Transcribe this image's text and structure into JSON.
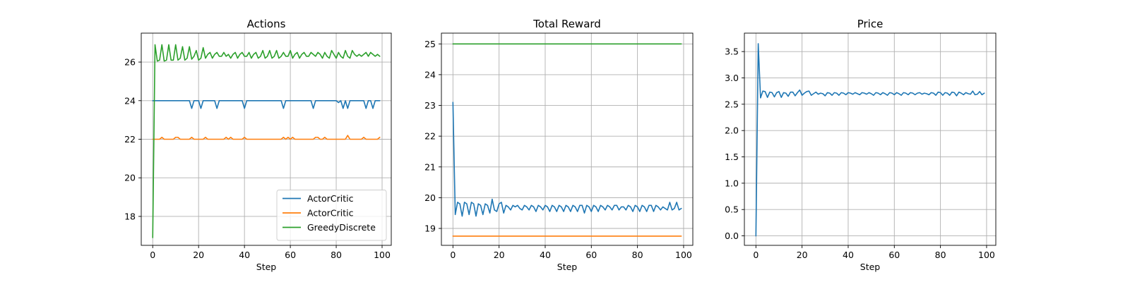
{
  "colors": {
    "blue": "#1f77b4",
    "orange": "#ff7f0e",
    "green": "#2ca02c",
    "grid": "#b0b0b0"
  },
  "chart_data": [
    {
      "type": "line",
      "title": "Actions",
      "xlabel": "Step",
      "ylabel": "",
      "xlim": [
        -5,
        104
      ],
      "ylim": [
        16.5,
        27.5
      ],
      "xticks": [
        0,
        20,
        40,
        60,
        80,
        100
      ],
      "yticks": [
        18,
        20,
        22,
        24,
        26
      ],
      "ytick_format": 0,
      "grid": true,
      "legend": "lower-right",
      "series": [
        {
          "name": "ActorCritic",
          "color": "#1f77b4",
          "x": [
            0,
            1,
            2,
            3,
            4,
            5,
            6,
            7,
            8,
            9,
            10,
            11,
            12,
            13,
            14,
            15,
            16,
            17,
            18,
            19,
            20,
            21,
            22,
            23,
            24,
            25,
            26,
            27,
            28,
            29,
            30,
            31,
            32,
            33,
            34,
            35,
            36,
            37,
            38,
            39,
            40,
            41,
            42,
            43,
            44,
            45,
            46,
            47,
            48,
            49,
            50,
            51,
            52,
            53,
            54,
            55,
            56,
            57,
            58,
            59,
            60,
            61,
            62,
            63,
            64,
            65,
            66,
            67,
            68,
            69,
            70,
            71,
            72,
            73,
            74,
            75,
            76,
            77,
            78,
            79,
            80,
            81,
            82,
            83,
            84,
            85,
            86,
            87,
            88,
            89,
            90,
            91,
            92,
            93,
            94,
            95,
            96,
            97,
            98,
            99
          ],
          "y": [
            24,
            24,
            24,
            24,
            24,
            24,
            24,
            24,
            24,
            24,
            24,
            24,
            24,
            24,
            24,
            24,
            24,
            23.6,
            24,
            24,
            24,
            23.6,
            24,
            24,
            24,
            24,
            24,
            24,
            23.6,
            24,
            24,
            24,
            24,
            24,
            24,
            24,
            24,
            24,
            24,
            24,
            23.6,
            24,
            24,
            24,
            24,
            24,
            24,
            24,
            24,
            24,
            24,
            24,
            24,
            24,
            24,
            24,
            24,
            23.6,
            24,
            24,
            24,
            24,
            24,
            24,
            24,
            24,
            24,
            24,
            24,
            24,
            23.6,
            24,
            24,
            24,
            24,
            24,
            24,
            24,
            24,
            24,
            24,
            23.9,
            24,
            23.6,
            24,
            23.6,
            24,
            24,
            24,
            24,
            24,
            24,
            24,
            23.6,
            24,
            24,
            23.6,
            24,
            24,
            24
          ]
        },
        {
          "name": "ActorCritic",
          "color": "#ff7f0e",
          "x": [
            0,
            1,
            2,
            3,
            4,
            5,
            6,
            7,
            8,
            9,
            10,
            11,
            12,
            13,
            14,
            15,
            16,
            17,
            18,
            19,
            20,
            21,
            22,
            23,
            24,
            25,
            26,
            27,
            28,
            29,
            30,
            31,
            32,
            33,
            34,
            35,
            36,
            37,
            38,
            39,
            40,
            41,
            42,
            43,
            44,
            45,
            46,
            47,
            48,
            49,
            50,
            51,
            52,
            53,
            54,
            55,
            56,
            57,
            58,
            59,
            60,
            61,
            62,
            63,
            64,
            65,
            66,
            67,
            68,
            69,
            70,
            71,
            72,
            73,
            74,
            75,
            76,
            77,
            78,
            79,
            80,
            81,
            82,
            83,
            84,
            85,
            86,
            87,
            88,
            89,
            90,
            91,
            92,
            93,
            94,
            95,
            96,
            97,
            98,
            99
          ],
          "y": [
            22,
            22,
            22,
            22,
            22.1,
            22,
            22,
            22,
            22,
            22,
            22.1,
            22.1,
            22,
            22,
            22,
            22,
            22,
            22.1,
            22,
            22,
            22,
            22,
            22,
            22.1,
            22,
            22,
            22,
            22,
            22,
            22,
            22,
            22,
            22.1,
            22,
            22.1,
            22,
            22,
            22,
            22,
            22,
            22.1,
            22,
            22,
            22,
            22,
            22,
            22,
            22,
            22,
            22,
            22,
            22,
            22,
            22,
            22,
            22,
            22,
            22.1,
            22,
            22.1,
            22,
            22.1,
            22,
            22,
            22,
            22,
            22,
            22,
            22,
            22,
            22,
            22.1,
            22.1,
            22,
            22,
            22.1,
            22,
            22,
            22,
            22,
            22,
            22,
            22,
            22,
            22,
            22.2,
            22,
            22,
            22,
            22,
            22,
            22,
            22.1,
            22,
            22,
            22,
            22,
            22,
            22,
            22.1
          ]
        },
        {
          "name": "GreedyDiscrete",
          "color": "#2ca02c",
          "x": [
            0,
            1,
            2,
            3,
            4,
            5,
            6,
            7,
            8,
            9,
            10,
            11,
            12,
            13,
            14,
            15,
            16,
            17,
            18,
            19,
            20,
            21,
            22,
            23,
            24,
            25,
            26,
            27,
            28,
            29,
            30,
            31,
            32,
            33,
            34,
            35,
            36,
            37,
            38,
            39,
            40,
            41,
            42,
            43,
            44,
            45,
            46,
            47,
            48,
            49,
            50,
            51,
            52,
            53,
            54,
            55,
            56,
            57,
            58,
            59,
            60,
            61,
            62,
            63,
            64,
            65,
            66,
            67,
            68,
            69,
            70,
            71,
            72,
            73,
            74,
            75,
            76,
            77,
            78,
            79,
            80,
            81,
            82,
            83,
            84,
            85,
            86,
            87,
            88,
            89,
            90,
            91,
            92,
            93,
            94,
            95,
            96,
            97,
            98,
            99
          ],
          "y": [
            16.9,
            26.9,
            26.05,
            26.1,
            26.9,
            26.05,
            26.1,
            26.9,
            26.1,
            26.1,
            26.9,
            26.1,
            26.2,
            26.8,
            26.1,
            26.2,
            26.8,
            26.15,
            26.3,
            26.6,
            26.1,
            26.2,
            26.75,
            26.2,
            26.4,
            26.5,
            26.2,
            26.4,
            26.5,
            26.3,
            26.3,
            26.5,
            26.3,
            26.4,
            26.2,
            26.4,
            26.5,
            26.2,
            26.4,
            26.5,
            26.3,
            26.3,
            26.5,
            26.2,
            26.4,
            26.5,
            26.2,
            26.3,
            26.6,
            26.2,
            26.3,
            26.6,
            26.2,
            26.3,
            26.6,
            26.2,
            26.3,
            26.5,
            26.3,
            26.3,
            26.6,
            26.2,
            26.4,
            26.5,
            26.2,
            26.4,
            26.5,
            26.3,
            26.3,
            26.5,
            26.4,
            26.3,
            26.5,
            26.4,
            26.2,
            26.5,
            26.3,
            26.2,
            26.6,
            26.4,
            26.2,
            26.5,
            26.3,
            26.2,
            26.6,
            26.3,
            26.2,
            26.6,
            26.4,
            26.3,
            26.4,
            26.3,
            26.4,
            26.5,
            26.3,
            26.5,
            26.4,
            26.3,
            26.4,
            26.3
          ]
        }
      ]
    },
    {
      "type": "line",
      "title": "Total Reward",
      "xlabel": "Step",
      "ylabel": "",
      "xlim": [
        -5,
        104
      ],
      "ylim": [
        18.45,
        25.35
      ],
      "xticks": [
        0,
        20,
        40,
        60,
        80,
        100
      ],
      "yticks": [
        19,
        20,
        21,
        22,
        23,
        24,
        25
      ],
      "ytick_format": 0,
      "grid": true,
      "series": [
        {
          "color": "#1f77b4",
          "x": [
            0,
            1,
            2,
            3,
            4,
            5,
            6,
            7,
            8,
            9,
            10,
            11,
            12,
            13,
            14,
            15,
            16,
            17,
            18,
            19,
            20,
            21,
            22,
            23,
            24,
            25,
            26,
            27,
            28,
            29,
            30,
            31,
            32,
            33,
            34,
            35,
            36,
            37,
            38,
            39,
            40,
            41,
            42,
            43,
            44,
            45,
            46,
            47,
            48,
            49,
            50,
            51,
            52,
            53,
            54,
            55,
            56,
            57,
            58,
            59,
            60,
            61,
            62,
            63,
            64,
            65,
            66,
            67,
            68,
            69,
            70,
            71,
            72,
            73,
            74,
            75,
            76,
            77,
            78,
            79,
            80,
            81,
            82,
            83,
            84,
            85,
            86,
            87,
            88,
            89,
            90,
            91,
            92,
            93,
            94,
            95,
            96,
            97,
            98,
            99
          ],
          "y": [
            23.1,
            19.45,
            19.85,
            19.8,
            19.4,
            19.85,
            19.8,
            19.45,
            19.85,
            19.8,
            19.4,
            19.8,
            19.75,
            19.45,
            19.8,
            19.75,
            19.5,
            19.95,
            19.6,
            19.55,
            19.8,
            19.85,
            19.5,
            19.75,
            19.7,
            19.6,
            19.75,
            19.7,
            19.75,
            19.65,
            19.6,
            19.75,
            19.7,
            19.6,
            19.75,
            19.7,
            19.55,
            19.75,
            19.7,
            19.6,
            19.75,
            19.7,
            19.55,
            19.75,
            19.7,
            19.55,
            19.75,
            19.7,
            19.55,
            19.75,
            19.7,
            19.55,
            19.75,
            19.7,
            19.55,
            19.75,
            19.75,
            19.5,
            19.75,
            19.7,
            19.55,
            19.75,
            19.7,
            19.55,
            19.75,
            19.7,
            19.6,
            19.75,
            19.7,
            19.6,
            19.75,
            19.75,
            19.6,
            19.7,
            19.7,
            19.6,
            19.75,
            19.7,
            19.55,
            19.75,
            19.7,
            19.55,
            19.75,
            19.7,
            19.55,
            19.75,
            19.75,
            19.55,
            19.75,
            19.7,
            19.6,
            19.7,
            19.65,
            19.6,
            19.85,
            19.6,
            19.65,
            19.85,
            19.6,
            19.65
          ]
        },
        {
          "color": "#ff7f0e",
          "x": [
            0,
            99
          ],
          "y": [
            18.75,
            18.75
          ]
        },
        {
          "color": "#2ca02c",
          "x": [
            0,
            99
          ],
          "y": [
            25,
            25
          ]
        }
      ]
    },
    {
      "type": "line",
      "title": "Price",
      "xlabel": "Step",
      "ylabel": "",
      "xlim": [
        -5,
        104
      ],
      "ylim": [
        -0.18,
        3.85
      ],
      "xticks": [
        0,
        20,
        40,
        60,
        80,
        100
      ],
      "yticks": [
        0.0,
        0.5,
        1.0,
        1.5,
        2.0,
        2.5,
        3.0,
        3.5
      ],
      "ytick_format": 1,
      "grid": true,
      "series": [
        {
          "color": "#1f77b4",
          "x": [
            0,
            1,
            2,
            3,
            4,
            5,
            6,
            7,
            8,
            9,
            10,
            11,
            12,
            13,
            14,
            15,
            16,
            17,
            18,
            19,
            20,
            21,
            22,
            23,
            24,
            25,
            26,
            27,
            28,
            29,
            30,
            31,
            32,
            33,
            34,
            35,
            36,
            37,
            38,
            39,
            40,
            41,
            42,
            43,
            44,
            45,
            46,
            47,
            48,
            49,
            50,
            51,
            52,
            53,
            54,
            55,
            56,
            57,
            58,
            59,
            60,
            61,
            62,
            63,
            64,
            65,
            66,
            67,
            68,
            69,
            70,
            71,
            72,
            73,
            74,
            75,
            76,
            77,
            78,
            79,
            80,
            81,
            82,
            83,
            84,
            85,
            86,
            87,
            88,
            89,
            90,
            91,
            92,
            93,
            94,
            95,
            96,
            97,
            98,
            99
          ],
          "y": [
            0.0,
            3.65,
            2.62,
            2.75,
            2.74,
            2.63,
            2.73,
            2.72,
            2.64,
            2.72,
            2.74,
            2.63,
            2.72,
            2.71,
            2.65,
            2.73,
            2.73,
            2.66,
            2.72,
            2.77,
            2.67,
            2.71,
            2.74,
            2.75,
            2.67,
            2.7,
            2.73,
            2.69,
            2.71,
            2.7,
            2.66,
            2.72,
            2.71,
            2.67,
            2.72,
            2.71,
            2.67,
            2.72,
            2.71,
            2.68,
            2.72,
            2.71,
            2.69,
            2.72,
            2.7,
            2.68,
            2.72,
            2.71,
            2.69,
            2.72,
            2.7,
            2.67,
            2.72,
            2.71,
            2.68,
            2.72,
            2.7,
            2.67,
            2.72,
            2.71,
            2.68,
            2.72,
            2.7,
            2.67,
            2.72,
            2.71,
            2.68,
            2.72,
            2.71,
            2.68,
            2.71,
            2.72,
            2.69,
            2.71,
            2.7,
            2.68,
            2.72,
            2.71,
            2.67,
            2.73,
            2.72,
            2.67,
            2.72,
            2.71,
            2.67,
            2.73,
            2.72,
            2.66,
            2.73,
            2.71,
            2.68,
            2.72,
            2.7,
            2.69,
            2.75,
            2.68,
            2.69,
            2.74,
            2.68,
            2.71
          ]
        }
      ]
    }
  ]
}
